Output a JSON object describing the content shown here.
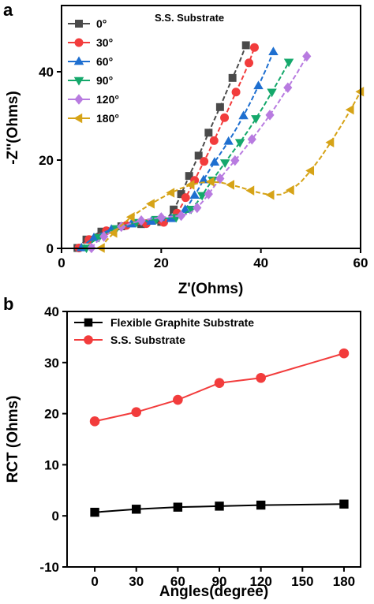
{
  "colors": {
    "s0": "#4a4a4a",
    "s30": "#f23c3c",
    "s60": "#1e6fd0",
    "s90": "#14a86b",
    "s120": "#b87be0",
    "s180": "#d6a317",
    "graphite": "#000000",
    "ss": "#f23c3c"
  },
  "chart_data": [
    {
      "panel_label": "a",
      "type": "scatter",
      "title": "",
      "annotation": "S.S. Substrate",
      "xlabel": "Z'(Ohms)",
      "ylabel": "-Z''(Ohms)",
      "xlim": [
        0,
        60
      ],
      "ylim": [
        0,
        55
      ],
      "xticks": [
        "0",
        "20",
        "40",
        "60"
      ],
      "yticks": [
        "0",
        "20",
        "40"
      ],
      "legend_position": "top-left",
      "series": [
        {
          "name": "0°",
          "marker": "square",
          "color_key": "s0",
          "x": [
            3.2,
            4.0,
            5.0,
            6.5,
            8.0,
            10.0,
            12.0,
            14.0,
            16.0,
            18.0,
            20.0,
            21.5,
            22.5,
            23.3,
            24.0,
            24.8,
            25.6,
            26.5,
            27.5,
            28.5,
            29.5,
            30.6,
            31.8,
            33.0,
            34.3,
            35.7,
            37.0
          ],
          "y": [
            0.1,
            1.0,
            2.0,
            3.0,
            3.8,
            4.5,
            5.0,
            5.3,
            5.5,
            5.6,
            6.0,
            7.2,
            8.8,
            10.5,
            12.3,
            14.3,
            16.4,
            18.6,
            21.0,
            23.5,
            26.2,
            29.0,
            32.0,
            35.2,
            38.6,
            42.2,
            46.0
          ]
        },
        {
          "name": "30°",
          "marker": "circle",
          "color_key": "s30",
          "x": [
            3.5,
            4.5,
            5.5,
            7.0,
            9.0,
            11.0,
            13.0,
            15.0,
            17.0,
            19.0,
            20.5,
            22.0,
            23.2,
            24.1,
            24.9,
            25.8,
            26.7,
            27.6,
            28.6,
            29.6,
            30.6,
            31.6,
            32.7,
            33.8,
            35.0,
            36.3,
            37.6,
            38.7
          ],
          "y": [
            0.1,
            1.1,
            2.0,
            3.0,
            4.0,
            4.7,
            5.2,
            5.5,
            5.6,
            5.7,
            5.9,
            6.6,
            8.0,
            9.7,
            11.5,
            13.4,
            15.4,
            17.5,
            19.7,
            22.0,
            24.4,
            26.9,
            29.6,
            32.4,
            35.4,
            38.6,
            42.0,
            45.5
          ]
        },
        {
          "name": "60°",
          "marker": "triangle-up",
          "color_key": "s60",
          "x": [
            4.0,
            5.0,
            6.5,
            8.0,
            10.0,
            12.0,
            14.0,
            16.0,
            18.0,
            20.0,
            22.0,
            23.5,
            24.8,
            25.8,
            26.7,
            27.6,
            28.5,
            29.5,
            30.7,
            32.0,
            33.5,
            35.0,
            36.5,
            38.0,
            39.5,
            41.0,
            42.5
          ],
          "y": [
            0.1,
            1.2,
            2.4,
            3.4,
            4.3,
            5.0,
            5.5,
            5.9,
            6.1,
            6.3,
            6.7,
            7.5,
            8.8,
            10.4,
            12.0,
            13.7,
            15.5,
            17.4,
            19.5,
            21.7,
            24.2,
            27.0,
            30.0,
            33.3,
            36.8,
            40.5,
            44.5
          ]
        },
        {
          "name": "90°",
          "marker": "triangle-down",
          "color_key": "s90",
          "x": [
            5.0,
            6.0,
            7.5,
            9.0,
            11.0,
            13.0,
            15.0,
            17.0,
            19.0,
            21.0,
            23.0,
            24.6,
            26.0,
            27.2,
            28.2,
            29.2,
            30.3,
            31.5,
            32.8,
            34.2,
            35.8,
            37.4,
            39.0,
            40.6,
            42.2,
            43.9,
            45.6
          ],
          "y": [
            0.1,
            1.3,
            2.5,
            3.5,
            4.5,
            5.3,
            5.9,
            6.3,
            6.6,
            6.8,
            7.0,
            7.7,
            8.9,
            10.4,
            12.0,
            13.7,
            15.5,
            17.4,
            19.4,
            21.6,
            24.0,
            26.6,
            29.4,
            32.3,
            35.4,
            38.7,
            42.2
          ]
        },
        {
          "name": "120°",
          "marker": "diamond",
          "color_key": "s120",
          "x": [
            6.0,
            7.0,
            8.5,
            10.0,
            12.0,
            14.0,
            16.0,
            18.0,
            20.0,
            22.0,
            24.0,
            25.8,
            27.2,
            28.4,
            29.5,
            30.6,
            31.8,
            33.2,
            34.8,
            36.5,
            38.2,
            40.0,
            41.8,
            43.6,
            45.4,
            47.3,
            49.2
          ],
          "y": [
            0.1,
            1.4,
            2.7,
            3.8,
            4.9,
            5.7,
            6.3,
            6.7,
            7.0,
            7.2,
            7.4,
            8.0,
            9.2,
            10.7,
            12.3,
            14.0,
            15.8,
            17.8,
            19.9,
            22.2,
            24.7,
            27.4,
            30.2,
            33.2,
            36.4,
            39.8,
            43.5
          ]
        },
        {
          "name": "180°",
          "marker": "triangle-left",
          "color_key": "s180",
          "x": [
            8.0,
            9.0,
            10.5,
            12.0,
            14.0,
            16.0,
            18.0,
            20.0,
            22.0,
            24.0,
            26.0,
            28.0,
            30.0,
            32.0,
            34.0,
            36.0,
            38.0,
            40.0,
            42.0,
            44.0,
            46.0,
            48.0,
            50.0,
            52.0,
            54.0,
            56.0,
            58.0,
            60.0
          ],
          "y": [
            0.1,
            1.8,
            3.5,
            5.2,
            7.1,
            8.7,
            10.1,
            11.4,
            12.6,
            13.6,
            14.4,
            14.9,
            15.1,
            14.9,
            14.4,
            13.8,
            13.1,
            12.5,
            12.1,
            12.2,
            13.2,
            15.0,
            17.6,
            20.6,
            24.0,
            27.6,
            31.4,
            35.5
          ]
        }
      ]
    },
    {
      "panel_label": "b",
      "type": "line",
      "title": "",
      "xlabel": "Angles(degree)",
      "ylabel": "RCT (Ohms)",
      "xlim": [
        -20,
        192
      ],
      "ylim": [
        -10,
        40
      ],
      "xticks": [
        "0",
        "30",
        "60",
        "90",
        "120",
        "150",
        "180"
      ],
      "yticks": [
        "-10",
        "0",
        "10",
        "20",
        "30",
        "40"
      ],
      "legend_position": "top-left",
      "x": [
        0,
        30,
        60,
        90,
        120,
        180
      ],
      "series": [
        {
          "name": "Flexible Graphite Substrate",
          "marker": "square",
          "color_key": "graphite",
          "values": [
            0.7,
            1.3,
            1.7,
            1.9,
            2.1,
            2.3
          ]
        },
        {
          "name": "S.S. Substrate",
          "marker": "circle",
          "color_key": "ss",
          "values": [
            18.5,
            20.3,
            22.7,
            26.0,
            27.0,
            31.8
          ]
        }
      ]
    }
  ]
}
